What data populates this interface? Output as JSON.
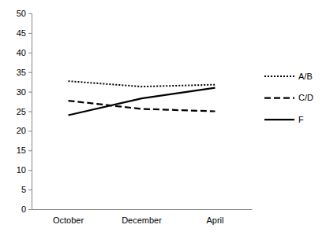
{
  "chart_data": {
    "type": "line",
    "categories": [
      "October",
      "December",
      "April"
    ],
    "series": [
      {
        "name": "A/B",
        "color": "#000000",
        "line_style": "dotted",
        "values": [
          32.7,
          31.3,
          31.8
        ]
      },
      {
        "name": "C/D",
        "color": "#000000",
        "line_style": "dashed",
        "values": [
          27.7,
          25.6,
          25.0
        ]
      },
      {
        "name": "F",
        "color": "#000000",
        "line_style": "solid",
        "values": [
          24.0,
          28.3,
          31.0
        ]
      }
    ],
    "ylim": [
      0,
      50
    ],
    "yticks": [
      0,
      5,
      10,
      15,
      20,
      25,
      30,
      35,
      40,
      45,
      50
    ],
    "grid": false,
    "legend": "right"
  }
}
